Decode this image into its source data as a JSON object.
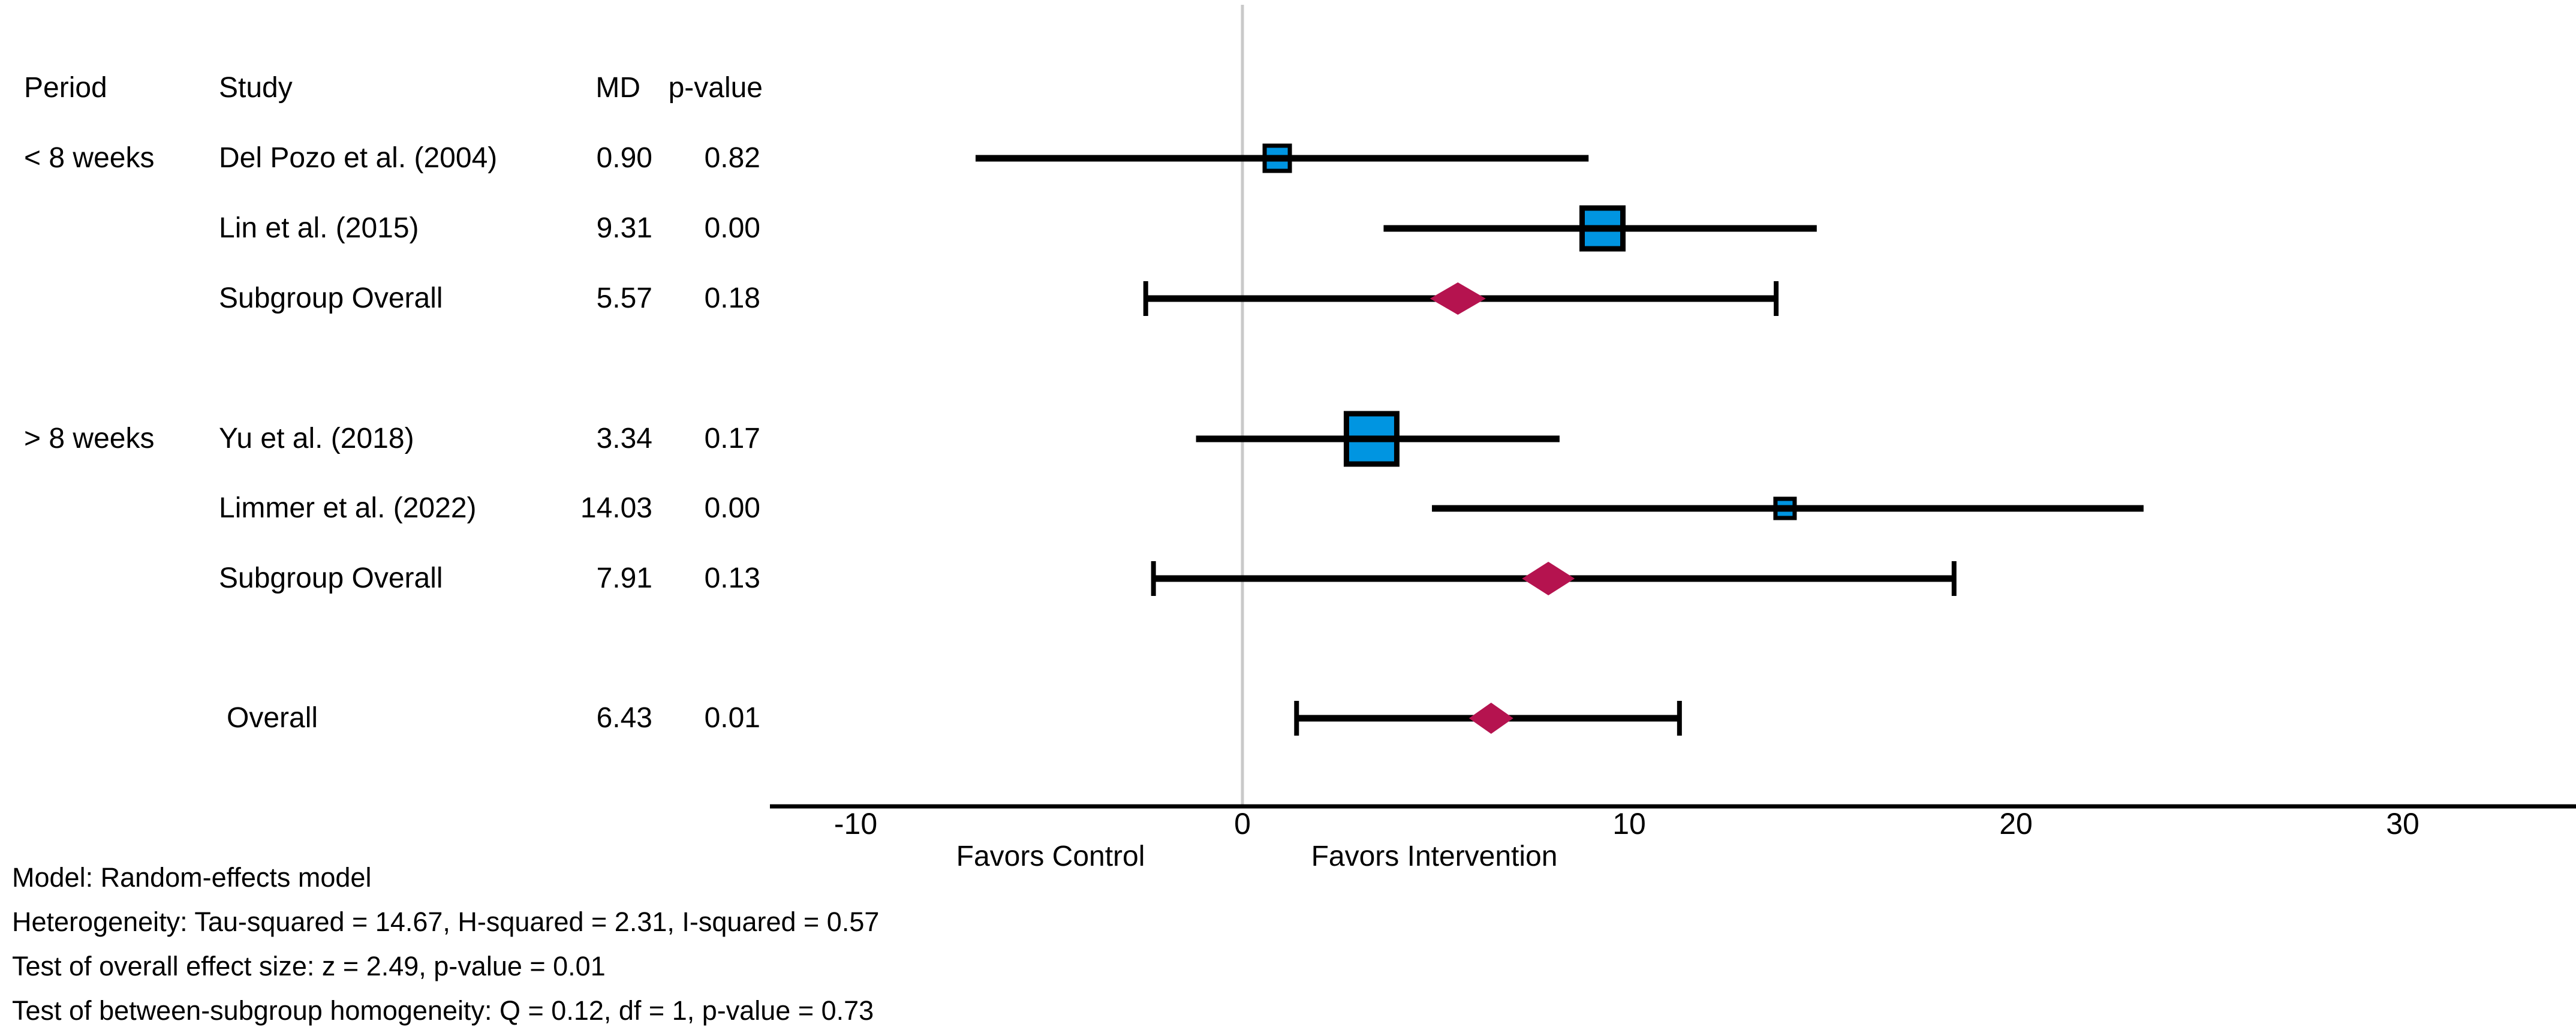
{
  "header": {
    "period": "Period",
    "study": "Study",
    "md": "MD",
    "p": "p-value"
  },
  "rows": [
    {
      "period": "< 8 weeks",
      "study": "Del Pozo et al. (2004)",
      "md": "0.90",
      "p": "0.82"
    },
    {
      "period": "",
      "study": "Lin et al. (2015)",
      "md": "9.31",
      "p": "0.00"
    },
    {
      "period": "",
      "study": "Subgroup Overall",
      "md": "5.57",
      "p": "0.18"
    },
    {
      "period": "> 8 weeks",
      "study": "Yu et al. (2018)",
      "md": "3.34",
      "p": "0.17"
    },
    {
      "period": "",
      "study": "Limmer et al. (2022)",
      "md": "14.03",
      "p": "0.00"
    },
    {
      "period": "",
      "study": "Subgroup Overall",
      "md": "7.91",
      "p": "0.13"
    },
    {
      "period": "",
      "study": "Overall",
      "md": "6.43",
      "p": "0.01"
    }
  ],
  "chart_data": {
    "type": "scatter",
    "subtype": "forest-plot",
    "x_ticks": [
      -10,
      0,
      10,
      20,
      30
    ],
    "xlim": [
      -12.2,
      34.5
    ],
    "zero_line_x": 0,
    "xlabel_left": "Favors Control",
    "xlabel_right": "Favors Intervention",
    "series": [
      {
        "label": "Del Pozo et al. (2004)",
        "group": "< 8 weeks",
        "estimate": 0.9,
        "ci_low": -6.9,
        "ci_high": 8.95,
        "p_value": "0.82",
        "marker": "square",
        "marker_size": 42,
        "caps": false
      },
      {
        "label": "Lin et al. (2015)",
        "group": "< 8 weeks",
        "estimate": 9.31,
        "ci_low": 3.65,
        "ci_high": 14.85,
        "p_value": "0.00",
        "marker": "square",
        "marker_size": 68,
        "caps": false
      },
      {
        "label": "Subgroup Overall (< 8 weeks)",
        "group": "< 8 weeks",
        "estimate": 5.57,
        "ci_low": -2.5,
        "ci_high": 13.8,
        "p_value": "0.18",
        "marker": "diamond",
        "diamond_w": 93,
        "diamond_h": 54,
        "caps": true
      },
      {
        "label": "Yu et al. (2018)",
        "group": "> 8 weeks",
        "estimate": 3.34,
        "ci_low": -1.2,
        "ci_high": 8.2,
        "p_value": "0.17",
        "marker": "square",
        "marker_size": 84,
        "caps": false
      },
      {
        "label": "Limmer et al. (2022)",
        "group": "> 8 weeks",
        "estimate": 14.03,
        "ci_low": 4.9,
        "ci_high": 23.3,
        "p_value": "0.00",
        "marker": "square",
        "marker_size": 32,
        "caps": false
      },
      {
        "label": "Subgroup Overall (> 8 weeks)",
        "group": "> 8 weeks",
        "estimate": 7.91,
        "ci_low": -2.3,
        "ci_high": 18.4,
        "p_value": "0.13",
        "marker": "diamond",
        "diamond_w": 88,
        "diamond_h": 56,
        "caps": true
      },
      {
        "label": "Overall",
        "group": "",
        "estimate": 6.43,
        "ci_low": 1.4,
        "ci_high": 11.3,
        "p_value": "0.01",
        "marker": "diamond",
        "diamond_w": 74,
        "diamond_h": 52,
        "caps": true
      }
    ]
  },
  "footer": {
    "line1": "Model: Random-effects model",
    "line2": "Heterogeneity: Tau-squared = 14.67, H-squared = 2.31, I-squared = 0.57",
    "line3": "Test of overall effect size: z = 2.49, p-value = 0.01",
    "line4": "Test of between-subgroup homogeneity: Q = 0.12, df = 1, p-value = 0.73"
  },
  "colors": {
    "square_fill": "#0095e1",
    "diamond_fill": "#b5134f",
    "zero_line": "#c9c9c9",
    "ci_line": "#000000",
    "text": "#000000"
  }
}
